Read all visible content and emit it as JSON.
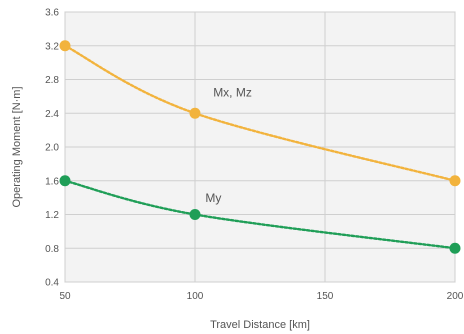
{
  "chart_data": {
    "type": "line",
    "xlabel": "Travel Distance [km]",
    "ylabel": "Operating Moment [N·m]",
    "xlim": [
      50,
      200
    ],
    "ylim": [
      0.4,
      3.6
    ],
    "x_ticks": [
      "50",
      "100",
      "150",
      "200"
    ],
    "y_ticks": [
      "0.4",
      "0.8",
      "1.2",
      "1.6",
      "2.0",
      "2.4",
      "2.8",
      "3.2",
      "3.6"
    ],
    "grid": true,
    "background": "#f3f3f3",
    "series": [
      {
        "name": "Mx, Mz",
        "color": "#f2b33d",
        "x": [
          50,
          100,
          200
        ],
        "y": [
          3.2,
          2.4,
          1.6
        ]
      },
      {
        "name": "My",
        "color": "#1f9e57",
        "x": [
          50,
          100,
          200
        ],
        "y": [
          1.6,
          1.2,
          0.8
        ]
      }
    ]
  }
}
